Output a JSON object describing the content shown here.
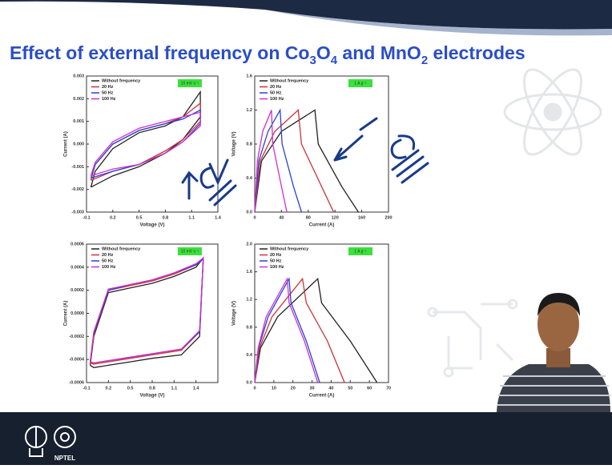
{
  "slide": {
    "title": [
      {
        "text": "Effect of external frequency on Co"
      },
      {
        "text": "3",
        "sub": true
      },
      {
        "text": "O"
      },
      {
        "text": "4",
        "sub": true
      },
      {
        "text": " and MnO"
      },
      {
        "text": "2",
        "sub": true
      },
      {
        "text": " electrodes"
      }
    ]
  },
  "footer": {
    "logo_text": "NPTEL"
  },
  "chart_data": [
    {
      "type": "line",
      "xlabel": "Voltage (V)",
      "ylabel": "Current (A)",
      "annotation": "10 mV s⁻¹",
      "legend": "upper left",
      "xlim": [
        -0.1,
        1.4
      ],
      "xticks": [
        -0.1,
        0.2,
        0.5,
        0.8,
        1.1,
        1.4
      ],
      "ylim": [
        -0.003,
        0.003
      ],
      "yticks": [
        -0.003,
        -0.002,
        -0.001,
        {
          "value": 0,
          "label": "0.000"
        },
        0.001,
        0.002,
        0.003
      ],
      "series": [
        {
          "name": "Without frequency",
          "color": "#222222",
          "x": [
            -0.05,
            0.0,
            0.2,
            0.5,
            0.8,
            1.0,
            1.2,
            1.2,
            1.0,
            0.8,
            0.5,
            0.2,
            -0.05
          ],
          "values": [
            -0.0019,
            -0.0012,
            -0.0002,
            0.0005,
            0.0008,
            0.0012,
            0.0023,
            0.0012,
            0.0002,
            -0.0004,
            -0.001,
            -0.0014,
            -0.0019
          ]
        },
        {
          "name": "20 Hz",
          "color": "#d0303a",
          "x": [
            -0.05,
            0.0,
            0.2,
            0.5,
            0.8,
            1.0,
            1.2,
            1.2,
            1.0,
            0.8,
            0.5,
            0.2,
            -0.05
          ],
          "values": [
            -0.0016,
            -0.0009,
            0.0,
            0.0006,
            0.0009,
            0.0012,
            0.0018,
            0.001,
            0.0002,
            -0.0003,
            -0.0009,
            -0.0012,
            -0.0016
          ]
        },
        {
          "name": "50 Hz",
          "color": "#2a40d8",
          "x": [
            -0.05,
            0.0,
            0.2,
            0.5,
            0.8,
            1.0,
            1.2,
            1.2,
            1.0,
            0.8,
            0.5,
            0.2,
            -0.05
          ],
          "values": [
            -0.0015,
            -0.0009,
            0.0,
            0.0006,
            0.0009,
            0.0011,
            0.0015,
            0.0009,
            0.0001,
            -0.0004,
            -0.0009,
            -0.0012,
            -0.0015
          ]
        },
        {
          "name": "100 Hz",
          "color": "#cc30cc",
          "x": [
            -0.05,
            0.0,
            0.2,
            0.5,
            0.8,
            1.0,
            1.2,
            1.2,
            1.0,
            0.8,
            0.5,
            0.2,
            -0.05
          ],
          "values": [
            -0.0014,
            -0.0008,
            0.0001,
            0.0007,
            0.001,
            0.0012,
            0.0014,
            0.0008,
            0.0001,
            -0.0004,
            -0.0009,
            -0.0011,
            -0.0014
          ]
        }
      ]
    },
    {
      "type": "line",
      "xlabel": "Current (A)",
      "ylabel": "Voltage (V)",
      "annotation": "1 A g⁻¹",
      "legend": "upper left",
      "xlim": [
        0,
        200
      ],
      "xticks": [
        0,
        40,
        80,
        120,
        160,
        200
      ],
      "ylim": [
        0,
        1.6
      ],
      "yticks": [
        {
          "value": 0,
          "label": "0.0"
        },
        0.4,
        0.8,
        1.2,
        1.6
      ],
      "series": [
        {
          "name": "Without frequency",
          "color": "#222222",
          "x": [
            0,
            10,
            40,
            90,
            95,
            130,
            155
          ],
          "values": [
            0,
            0.6,
            0.95,
            1.2,
            0.8,
            0.3,
            0
          ]
        },
        {
          "name": "20 Hz",
          "color": "#d0303a",
          "x": [
            0,
            8,
            30,
            65,
            70,
            100,
            118
          ],
          "values": [
            0,
            0.6,
            0.95,
            1.2,
            0.8,
            0.3,
            0
          ]
        },
        {
          "name": "50 Hz",
          "color": "#2a40d8",
          "x": [
            0,
            6,
            20,
            38,
            41,
            58,
            70
          ],
          "values": [
            0,
            0.6,
            0.95,
            1.2,
            0.8,
            0.3,
            0
          ]
        },
        {
          "name": "100 Hz",
          "color": "#cc30cc",
          "x": [
            0,
            4,
            12,
            25,
            27,
            40,
            48
          ],
          "values": [
            0,
            0.6,
            0.95,
            1.2,
            0.8,
            0.3,
            0
          ]
        }
      ]
    },
    {
      "type": "line",
      "xlabel": "Voltage (V)",
      "ylabel": "Current (A)",
      "annotation": "10 mV s⁻¹",
      "legend": "upper left",
      "xlim": [
        -0.1,
        1.7
      ],
      "xticks": [
        -0.1,
        0.2,
        0.5,
        0.8,
        1.1,
        1.4
      ],
      "ylim": [
        -0.0006,
        0.0006
      ],
      "yticks": [
        -0.0006,
        -0.0004,
        -0.0002,
        {
          "value": 0,
          "label": "0.0000"
        },
        0.0002,
        0.0004,
        0.0006
      ],
      "series": [
        {
          "name": "Without frequency",
          "color": "#222222",
          "x": [
            -0.05,
            0.0,
            0.2,
            0.5,
            0.8,
            1.1,
            1.4,
            1.5,
            1.45,
            1.2,
            0.8,
            0.5,
            0.2,
            0.0,
            -0.05
          ],
          "values": [
            -0.00045,
            -0.0002,
            0.00018,
            0.00022,
            0.00026,
            0.00032,
            0.0004,
            0.00048,
            -0.0002,
            -0.00036,
            -0.00039,
            -0.00042,
            -0.00045,
            -0.00047,
            -0.00045
          ]
        },
        {
          "name": "20 Hz",
          "color": "#d0303a",
          "x": [
            -0.05,
            0.0,
            0.2,
            0.5,
            0.8,
            1.1,
            1.4,
            1.5,
            1.45,
            1.2,
            0.8,
            0.5,
            0.2,
            0.0,
            -0.05
          ],
          "values": [
            -0.00043,
            -0.00018,
            0.0002,
            0.00024,
            0.00028,
            0.00034,
            0.00042,
            0.00048,
            -0.00016,
            -0.00032,
            -0.00036,
            -0.00039,
            -0.00042,
            -0.00044,
            -0.00043
          ]
        },
        {
          "name": "50 Hz",
          "color": "#2a40d8",
          "x": [
            -0.05,
            0.0,
            0.2,
            0.5,
            0.8,
            1.1,
            1.4,
            1.5,
            1.45,
            1.2,
            0.8,
            0.5,
            0.2,
            0.0,
            -0.05
          ],
          "values": [
            -0.00042,
            -0.00017,
            0.0002,
            0.00025,
            0.00029,
            0.00035,
            0.00042,
            0.00047,
            -0.00016,
            -0.00031,
            -0.00035,
            -0.00038,
            -0.00041,
            -0.00043,
            -0.00042
          ]
        },
        {
          "name": "100 Hz",
          "color": "#cc30cc",
          "x": [
            -0.05,
            0.0,
            0.2,
            0.5,
            0.8,
            1.1,
            1.4,
            1.5,
            1.45,
            1.2,
            0.8,
            0.5,
            0.2,
            0.0,
            -0.05
          ],
          "values": [
            -0.00042,
            -0.00016,
            0.00021,
            0.00025,
            0.00029,
            0.00035,
            0.00043,
            0.00048,
            -0.00015,
            -0.00031,
            -0.00035,
            -0.00038,
            -0.00041,
            -0.00043,
            -0.00042
          ]
        }
      ]
    },
    {
      "type": "line",
      "xlabel": "Current (A)",
      "ylabel": "Voltage (V)",
      "annotation": "1 A g⁻¹",
      "legend": "upper left",
      "xlim": [
        0,
        70
      ],
      "xticks": [
        0,
        10,
        20,
        30,
        40,
        50,
        60,
        70
      ],
      "ylim": [
        0,
        2.0
      ],
      "yticks": [
        {
          "value": 0,
          "label": "0.0"
        },
        0.4,
        0.8,
        1.2,
        1.6,
        {
          "value": 2.0,
          "label": "2.0"
        }
      ],
      "series": [
        {
          "name": "Without frequency",
          "color": "#222222",
          "x": [
            0,
            3,
            12,
            33,
            35,
            50,
            64
          ],
          "values": [
            0,
            0.5,
            0.95,
            1.5,
            1.15,
            0.6,
            0
          ]
        },
        {
          "name": "20 Hz",
          "color": "#d0303a",
          "x": [
            0,
            2.5,
            9,
            25,
            27,
            38,
            47
          ],
          "values": [
            0,
            0.5,
            0.95,
            1.5,
            1.15,
            0.6,
            0
          ]
        },
        {
          "name": "50 Hz",
          "color": "#2a40d8",
          "x": [
            0,
            2,
            7,
            18,
            19,
            27,
            34
          ],
          "values": [
            0,
            0.5,
            0.95,
            1.5,
            1.15,
            0.6,
            0
          ]
        },
        {
          "name": "100 Hz",
          "color": "#cc30cc",
          "x": [
            0,
            1.8,
            6,
            17,
            18,
            26,
            33
          ],
          "values": [
            0,
            0.5,
            0.95,
            1.5,
            1.15,
            0.6,
            0
          ]
        }
      ]
    }
  ]
}
